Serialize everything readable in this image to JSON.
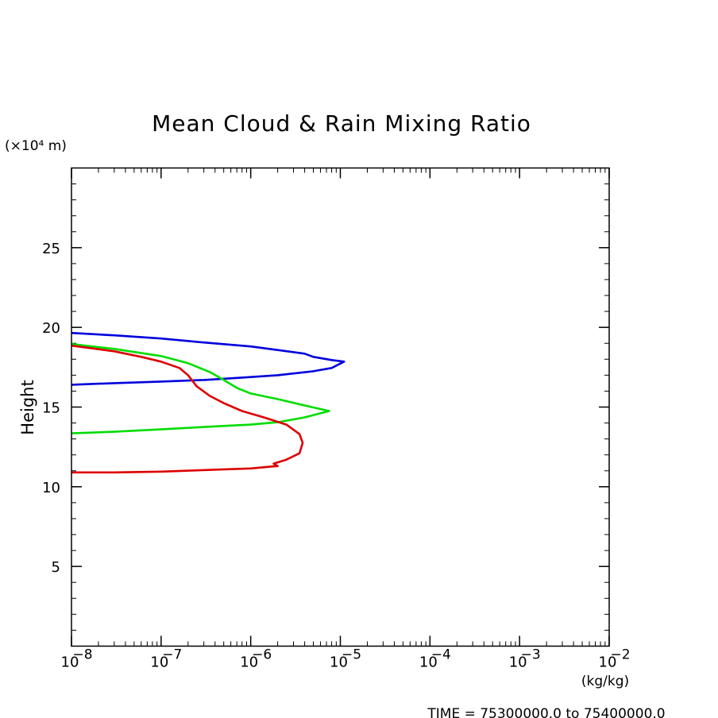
{
  "chart_data": {
    "type": "line",
    "title": "Mean Cloud & Rain Mixing Ratio",
    "ylabel": "Height",
    "yscale_label": "(×10⁴ m)",
    "xunit_label": "(kg/kg)",
    "xscale": "log",
    "xlim": [
      1e-08,
      0.01
    ],
    "ylim": [
      0,
      30
    ],
    "x_ticks": [
      {
        "value": 1e-08,
        "mantissa": "10",
        "exp": "−8"
      },
      {
        "value": 1e-07,
        "mantissa": "10",
        "exp": "−7"
      },
      {
        "value": 1e-06,
        "mantissa": "10",
        "exp": "−6"
      },
      {
        "value": 1e-05,
        "mantissa": "10",
        "exp": "−5"
      },
      {
        "value": 0.0001,
        "mantissa": "10",
        "exp": "−4"
      },
      {
        "value": 0.001,
        "mantissa": "10",
        "exp": "−3"
      },
      {
        "value": 0.01,
        "mantissa": "10",
        "exp": "−2"
      }
    ],
    "y_ticks": [
      {
        "value": 5,
        "label": "5"
      },
      {
        "value": 10,
        "label": "10"
      },
      {
        "value": 15,
        "label": "15"
      },
      {
        "value": 20,
        "label": "20"
      },
      {
        "value": 25,
        "label": "25"
      }
    ],
    "grid": false,
    "legend": "none",
    "series": [
      {
        "color": "#0000dd",
        "points": [
          [
            1e-08,
            19.65
          ],
          [
            3e-08,
            19.5
          ],
          [
            1e-07,
            19.3
          ],
          [
            3e-07,
            19.05
          ],
          [
            1e-06,
            18.8
          ],
          [
            2.2e-06,
            18.55
          ],
          [
            4e-06,
            18.35
          ],
          [
            5e-06,
            18.15
          ],
          [
            8e-06,
            17.95
          ],
          [
            1.1e-05,
            17.85
          ],
          [
            8e-06,
            17.45
          ],
          [
            5e-06,
            17.25
          ],
          [
            2e-06,
            17.0
          ],
          [
            8e-07,
            16.85
          ],
          [
            3e-07,
            16.7
          ],
          [
            1e-07,
            16.6
          ],
          [
            3e-08,
            16.5
          ],
          [
            1e-08,
            16.4
          ]
        ]
      },
      {
        "color": "#00dd00",
        "points": [
          [
            1e-08,
            18.95
          ],
          [
            3e-08,
            18.65
          ],
          [
            1e-07,
            18.2
          ],
          [
            2e-07,
            17.75
          ],
          [
            3.5e-07,
            17.2
          ],
          [
            5e-07,
            16.7
          ],
          [
            7e-07,
            16.2
          ],
          [
            1e-06,
            15.85
          ],
          [
            2e-06,
            15.5
          ],
          [
            4e-06,
            15.1
          ],
          [
            7.5e-06,
            14.75
          ],
          [
            4e-06,
            14.35
          ],
          [
            2e-06,
            14.05
          ],
          [
            1e-06,
            13.9
          ],
          [
            3e-07,
            13.75
          ],
          [
            1e-07,
            13.6
          ],
          [
            3e-08,
            13.45
          ],
          [
            1e-08,
            13.35
          ]
        ]
      },
      {
        "color": "#dd0000",
        "points": [
          [
            1e-08,
            18.85
          ],
          [
            3e-08,
            18.5
          ],
          [
            6e-08,
            18.15
          ],
          [
            1e-07,
            17.85
          ],
          [
            1.6e-07,
            17.45
          ],
          [
            2e-07,
            17.0
          ],
          [
            2.5e-07,
            16.3
          ],
          [
            3.5e-07,
            15.7
          ],
          [
            5e-07,
            15.25
          ],
          [
            8e-07,
            14.75
          ],
          [
            1.4e-06,
            14.35
          ],
          [
            2.5e-06,
            13.9
          ],
          [
            3.5e-06,
            13.3
          ],
          [
            3.8e-06,
            12.75
          ],
          [
            3.5e-06,
            12.1
          ],
          [
            2.5e-06,
            11.7
          ],
          [
            1.8e-06,
            11.45
          ],
          [
            2e-06,
            11.3
          ],
          [
            1e-06,
            11.15
          ],
          [
            1e-07,
            10.95
          ],
          [
            3e-08,
            10.9
          ],
          [
            1e-08,
            10.9
          ]
        ]
      }
    ]
  },
  "footer": "TIME = 75300000.0 to 75400000.0"
}
